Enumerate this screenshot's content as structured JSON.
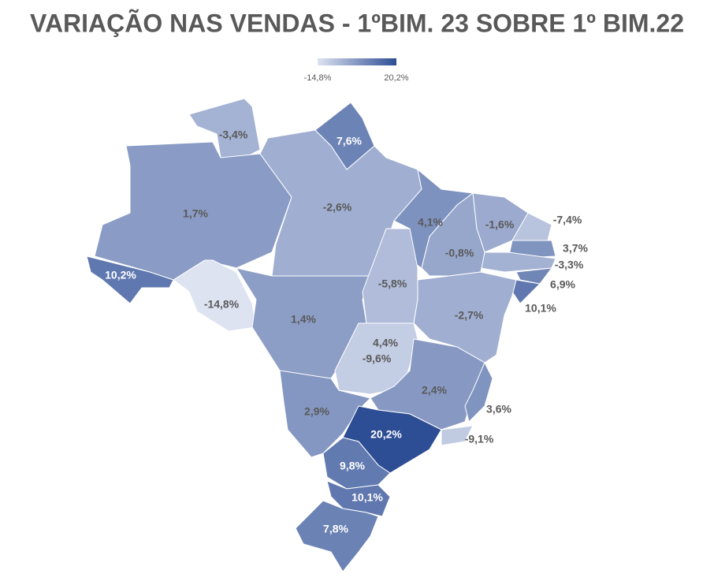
{
  "chart_data": {
    "type": "choropleth",
    "title": "VARIAÇÃO NAS VENDAS - 1ºBIM. 23 SOBRE 1º BIM.22",
    "values": [
      -3.4,
      7.6,
      1.7,
      -2.6,
      4.1,
      -1.6,
      -7.4,
      3.7,
      -3.3,
      6.9,
      10.1,
      -0.8,
      10.2,
      -14.8,
      1.4,
      -5.8,
      -2.7,
      4.4,
      -9.6,
      2.4,
      3.6,
      2.9,
      20.2,
      -9.1,
      9.8,
      10.1,
      7.8
    ],
    "value_labels": [
      "-3,4%",
      "7,6%",
      "1,7%",
      "-2,6%",
      "4,1%",
      "-1,6%",
      "-7,4%",
      "3,7%",
      "-3,3%",
      "6,9%",
      "10,1%",
      "-0,8%",
      "10,2%",
      "-14,8%",
      "1,4%",
      "-5,8%",
      "-2,7%",
      "4,4%",
      "-9,6%",
      "2,4%",
      "3,6%",
      "2,9%",
      "20,2%",
      "-9,1%",
      "9,8%",
      "10,1%",
      "7,8%"
    ],
    "color_range": [
      {
        "value": -14.8,
        "label": "-14,8%"
      },
      {
        "value": 20.2,
        "label": "20,2%"
      }
    ],
    "colors": [
      "#dde3f1",
      "#2d4d94"
    ]
  }
}
